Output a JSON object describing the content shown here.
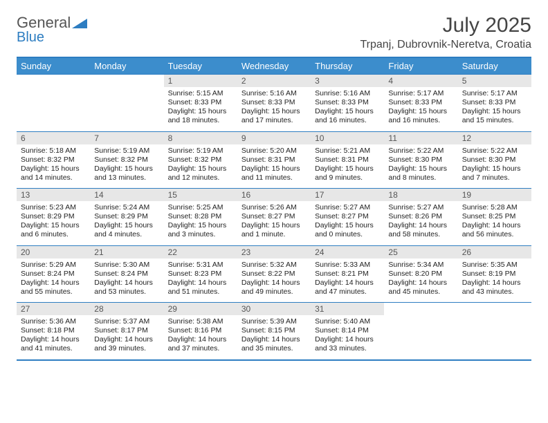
{
  "logo": {
    "line1": "General",
    "line2": "Blue",
    "accent_color": "#2d7dc1",
    "text_color": "#555555"
  },
  "title": "July 2025",
  "location": "Trpanj, Dubrovnik-Neretva, Croatia",
  "header_bg": "#3c8dcc",
  "border_color": "#2d7dc1",
  "daynum_bg": "#e7e7e7",
  "weekdays": [
    "Sunday",
    "Monday",
    "Tuesday",
    "Wednesday",
    "Thursday",
    "Friday",
    "Saturday"
  ],
  "weeks": [
    [
      null,
      null,
      {
        "n": "1",
        "sunrise": "5:15 AM",
        "sunset": "8:33 PM",
        "daylight": "15 hours and 18 minutes."
      },
      {
        "n": "2",
        "sunrise": "5:16 AM",
        "sunset": "8:33 PM",
        "daylight": "15 hours and 17 minutes."
      },
      {
        "n": "3",
        "sunrise": "5:16 AM",
        "sunset": "8:33 PM",
        "daylight": "15 hours and 16 minutes."
      },
      {
        "n": "4",
        "sunrise": "5:17 AM",
        "sunset": "8:33 PM",
        "daylight": "15 hours and 16 minutes."
      },
      {
        "n": "5",
        "sunrise": "5:17 AM",
        "sunset": "8:33 PM",
        "daylight": "15 hours and 15 minutes."
      }
    ],
    [
      {
        "n": "6",
        "sunrise": "5:18 AM",
        "sunset": "8:32 PM",
        "daylight": "15 hours and 14 minutes."
      },
      {
        "n": "7",
        "sunrise": "5:19 AM",
        "sunset": "8:32 PM",
        "daylight": "15 hours and 13 minutes."
      },
      {
        "n": "8",
        "sunrise": "5:19 AM",
        "sunset": "8:32 PM",
        "daylight": "15 hours and 12 minutes."
      },
      {
        "n": "9",
        "sunrise": "5:20 AM",
        "sunset": "8:31 PM",
        "daylight": "15 hours and 11 minutes."
      },
      {
        "n": "10",
        "sunrise": "5:21 AM",
        "sunset": "8:31 PM",
        "daylight": "15 hours and 9 minutes."
      },
      {
        "n": "11",
        "sunrise": "5:22 AM",
        "sunset": "8:30 PM",
        "daylight": "15 hours and 8 minutes."
      },
      {
        "n": "12",
        "sunrise": "5:22 AM",
        "sunset": "8:30 PM",
        "daylight": "15 hours and 7 minutes."
      }
    ],
    [
      {
        "n": "13",
        "sunrise": "5:23 AM",
        "sunset": "8:29 PM",
        "daylight": "15 hours and 6 minutes."
      },
      {
        "n": "14",
        "sunrise": "5:24 AM",
        "sunset": "8:29 PM",
        "daylight": "15 hours and 4 minutes."
      },
      {
        "n": "15",
        "sunrise": "5:25 AM",
        "sunset": "8:28 PM",
        "daylight": "15 hours and 3 minutes."
      },
      {
        "n": "16",
        "sunrise": "5:26 AM",
        "sunset": "8:27 PM",
        "daylight": "15 hours and 1 minute."
      },
      {
        "n": "17",
        "sunrise": "5:27 AM",
        "sunset": "8:27 PM",
        "daylight": "15 hours and 0 minutes."
      },
      {
        "n": "18",
        "sunrise": "5:27 AM",
        "sunset": "8:26 PM",
        "daylight": "14 hours and 58 minutes."
      },
      {
        "n": "19",
        "sunrise": "5:28 AM",
        "sunset": "8:25 PM",
        "daylight": "14 hours and 56 minutes."
      }
    ],
    [
      {
        "n": "20",
        "sunrise": "5:29 AM",
        "sunset": "8:24 PM",
        "daylight": "14 hours and 55 minutes."
      },
      {
        "n": "21",
        "sunrise": "5:30 AM",
        "sunset": "8:24 PM",
        "daylight": "14 hours and 53 minutes."
      },
      {
        "n": "22",
        "sunrise": "5:31 AM",
        "sunset": "8:23 PM",
        "daylight": "14 hours and 51 minutes."
      },
      {
        "n": "23",
        "sunrise": "5:32 AM",
        "sunset": "8:22 PM",
        "daylight": "14 hours and 49 minutes."
      },
      {
        "n": "24",
        "sunrise": "5:33 AM",
        "sunset": "8:21 PM",
        "daylight": "14 hours and 47 minutes."
      },
      {
        "n": "25",
        "sunrise": "5:34 AM",
        "sunset": "8:20 PM",
        "daylight": "14 hours and 45 minutes."
      },
      {
        "n": "26",
        "sunrise": "5:35 AM",
        "sunset": "8:19 PM",
        "daylight": "14 hours and 43 minutes."
      }
    ],
    [
      {
        "n": "27",
        "sunrise": "5:36 AM",
        "sunset": "8:18 PM",
        "daylight": "14 hours and 41 minutes."
      },
      {
        "n": "28",
        "sunrise": "5:37 AM",
        "sunset": "8:17 PM",
        "daylight": "14 hours and 39 minutes."
      },
      {
        "n": "29",
        "sunrise": "5:38 AM",
        "sunset": "8:16 PM",
        "daylight": "14 hours and 37 minutes."
      },
      {
        "n": "30",
        "sunrise": "5:39 AM",
        "sunset": "8:15 PM",
        "daylight": "14 hours and 35 minutes."
      },
      {
        "n": "31",
        "sunrise": "5:40 AM",
        "sunset": "8:14 PM",
        "daylight": "14 hours and 33 minutes."
      },
      null,
      null
    ]
  ],
  "labels": {
    "sunrise": "Sunrise:",
    "sunset": "Sunset:",
    "daylight": "Daylight:"
  }
}
